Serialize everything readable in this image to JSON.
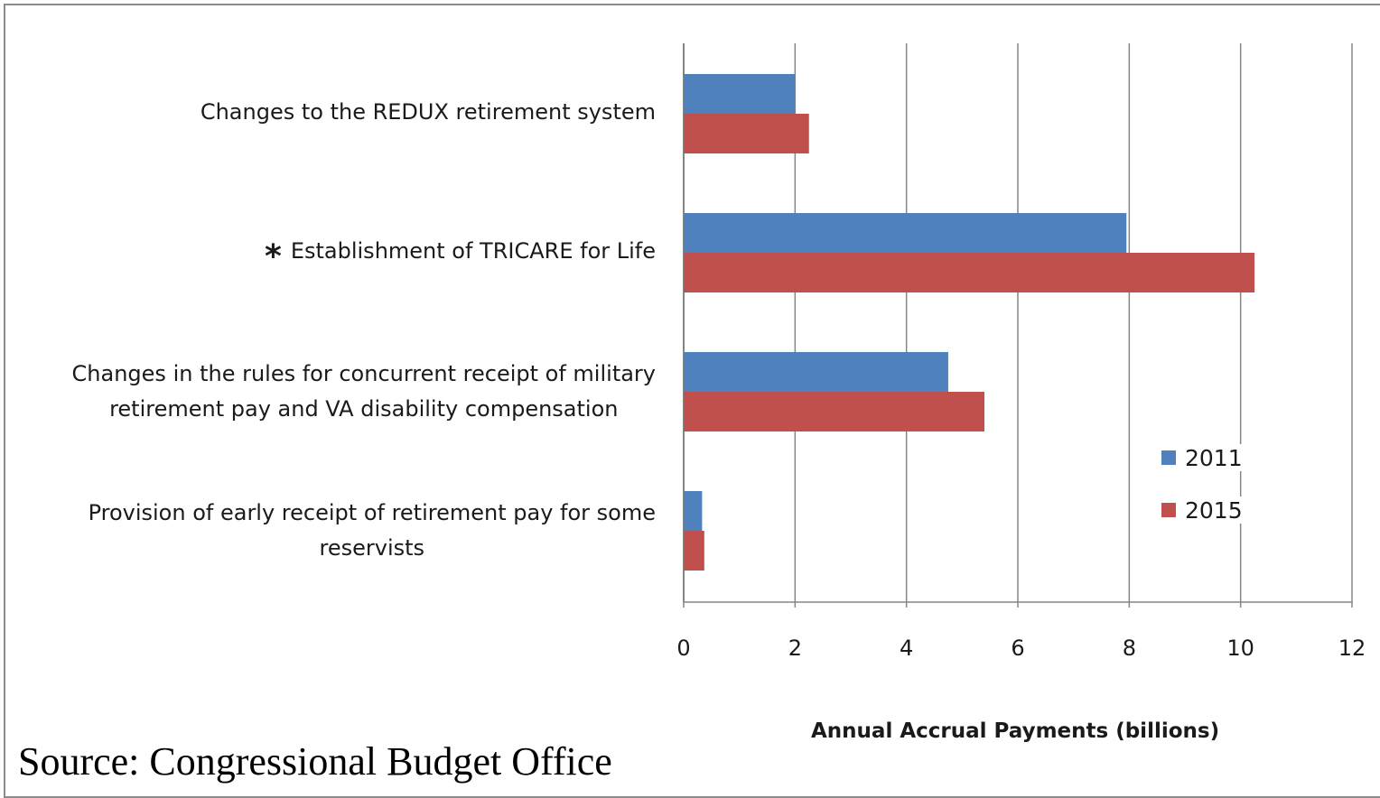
{
  "chart_data": {
    "type": "bar",
    "orientation": "horizontal",
    "categories": [
      {
        "asterisk": "",
        "lines": [
          "Changes to the REDUX  retirement system"
        ]
      },
      {
        "asterisk": "*",
        "lines": [
          "Establishment  of TRICARE for Life"
        ]
      },
      {
        "asterisk": "",
        "lines": [
          "Changes in the rules for concurrent receipt of military",
          "retirement pay and VA disability compensation"
        ]
      },
      {
        "asterisk": "",
        "lines": [
          "Provision of early receipt of retirement pay for some",
          "reservists"
        ]
      }
    ],
    "series": [
      {
        "name": "2011",
        "color": "#4f81bd",
        "values": [
          2.0,
          7.95,
          4.75,
          0.33
        ]
      },
      {
        "name": "2015",
        "color": "#c0504d",
        "values": [
          2.25,
          10.25,
          5.4,
          0.37
        ]
      }
    ],
    "xlabel": "Annual Accrual  Payments (billions)",
    "xlim": [
      0,
      12
    ],
    "xticks": [
      "0",
      "2",
      "4",
      "6",
      "8",
      "10",
      "12"
    ],
    "grid": true,
    "legend_position": "right"
  },
  "source_note": "Source:  Congressional Budget Office"
}
